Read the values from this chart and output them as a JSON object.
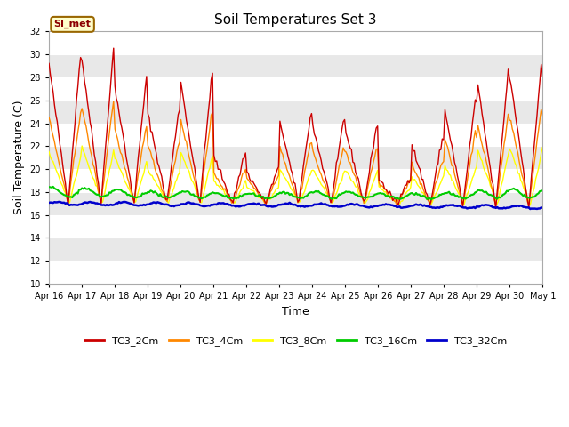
{
  "title": "Soil Temperatures Set 3",
  "xlabel": "Time",
  "ylabel": "Soil Temperature (C)",
  "ylim": [
    10,
    32
  ],
  "yticks": [
    10,
    12,
    14,
    16,
    18,
    20,
    22,
    24,
    26,
    28,
    30,
    32
  ],
  "bg_color": "#ffffff",
  "plot_bg": "#ffffff",
  "grid_color": "#e0e0e0",
  "series_colors": {
    "TC3_2Cm": "#cc0000",
    "TC3_4Cm": "#ff8800",
    "TC3_8Cm": "#ffff00",
    "TC3_16Cm": "#00cc00",
    "TC3_32Cm": "#0000cc"
  },
  "x_tick_labels": [
    "Apr 16",
    "Apr 17",
    "Apr 18",
    "Apr 19",
    "Apr 20",
    "Apr 21",
    "Apr 22",
    "Apr 23",
    "Apr 24",
    "Apr 25",
    "Apr 26",
    "Apr 27",
    "Apr 28",
    "Apr 29",
    "Apr 30",
    "May 1"
  ],
  "legend_label": "SI_met",
  "legend_bg": "#ffffcc",
  "legend_border": "#996600",
  "band_colors": [
    "#ffffff",
    "#e8e8e8"
  ]
}
